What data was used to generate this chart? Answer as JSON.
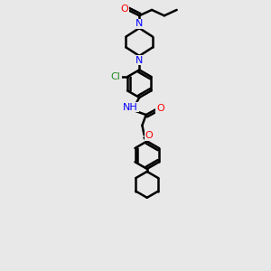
{
  "bg_color": "#e8e8e8",
  "line_color": "#000000",
  "bond_width": 1.8,
  "figsize": [
    3.0,
    3.0
  ],
  "dpi": 100,
  "xlim": [
    0,
    10
  ],
  "ylim": [
    0,
    14
  ]
}
